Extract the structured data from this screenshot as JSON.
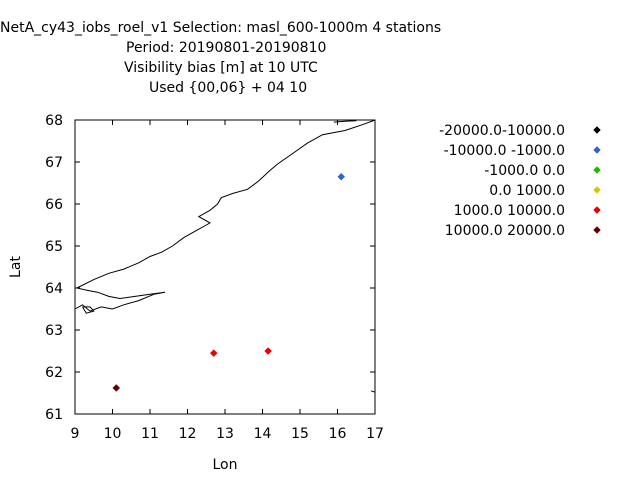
{
  "chart_data": {
    "type": "scatter",
    "title_lines": [
      "NetA_cy43_iobs_roel_v1   Selection: masl_600-1000m      4 stations",
      "Period: 20190801-20190810",
      "Visibility bias [m] at  10 UTC",
      "Used {00,06} + 04 10"
    ],
    "xlabel": "Lon",
    "ylabel": "Lat",
    "xlim": [
      9,
      17
    ],
    "ylim": [
      61,
      68
    ],
    "xticks": [
      "9",
      "10",
      "11",
      "12",
      "13",
      "14",
      "15",
      "16",
      "17"
    ],
    "yticks": [
      "61",
      "62",
      "63",
      "64",
      "65",
      "66",
      "67",
      "68"
    ],
    "grid": false,
    "legend_position": "right",
    "series": [
      {
        "name": "-20000.0-10000.0",
        "color": "#000000",
        "points": []
      },
      {
        "name": "-10000.0 -1000.0",
        "color": "#3366cc",
        "points": [
          [
            16.1,
            66.65
          ]
        ]
      },
      {
        "name": "-1000.0 0.0",
        "color": "#22bb00",
        "points": []
      },
      {
        "name": "0.0 1000.0",
        "color": "#cccc00",
        "points": []
      },
      {
        "name": "1000.0 10000.0",
        "color": "#ee0000",
        "points": [
          [
            12.7,
            62.45
          ],
          [
            14.15,
            62.5
          ]
        ]
      },
      {
        "name": "10000.0 20000.0",
        "color": "#660000",
        "points": [
          [
            10.1,
            61.62
          ]
        ]
      }
    ],
    "coastline": [
      [
        [
          9.0,
          63.5
        ],
        [
          9.2,
          63.6
        ],
        [
          9.4,
          63.45
        ],
        [
          9.7,
          63.55
        ],
        [
          10.0,
          63.5
        ],
        [
          10.3,
          63.6
        ],
        [
          10.7,
          63.7
        ],
        [
          11.1,
          63.85
        ],
        [
          11.4,
          63.9
        ],
        [
          11.0,
          63.85
        ],
        [
          10.6,
          63.8
        ],
        [
          10.2,
          63.75
        ],
        [
          9.9,
          63.8
        ],
        [
          9.6,
          63.9
        ],
        [
          9.3,
          63.95
        ],
        [
          9.05,
          64.0
        ],
        [
          9.5,
          64.2
        ],
        [
          9.9,
          64.35
        ],
        [
          10.3,
          64.45
        ],
        [
          10.7,
          64.6
        ],
        [
          11.0,
          64.75
        ],
        [
          11.3,
          64.85
        ],
        [
          11.6,
          65.0
        ],
        [
          11.9,
          65.2
        ],
        [
          12.2,
          65.35
        ],
        [
          12.5,
          65.5
        ],
        [
          12.6,
          65.55
        ],
        [
          12.3,
          65.7
        ],
        [
          12.6,
          65.85
        ],
        [
          12.8,
          66.0
        ],
        [
          12.9,
          66.15
        ],
        [
          13.2,
          66.25
        ],
        [
          13.6,
          66.35
        ],
        [
          13.9,
          66.55
        ],
        [
          14.2,
          66.8
        ],
        [
          14.4,
          66.95
        ],
        [
          14.8,
          67.2
        ],
        [
          15.2,
          67.45
        ],
        [
          15.6,
          67.65
        ],
        [
          16.2,
          67.75
        ],
        [
          16.7,
          67.9
        ],
        [
          17.0,
          68.0
        ]
      ],
      [
        [
          9.2,
          63.55
        ],
        [
          9.3,
          63.4
        ],
        [
          9.5,
          63.45
        ],
        [
          9.4,
          63.55
        ],
        [
          9.2,
          63.55
        ]
      ],
      [
        [
          16.9,
          61.55
        ],
        [
          17.0,
          61.52
        ]
      ],
      [
        [
          15.9,
          67.95
        ],
        [
          16.2,
          67.97
        ],
        [
          16.5,
          67.98
        ]
      ]
    ]
  }
}
